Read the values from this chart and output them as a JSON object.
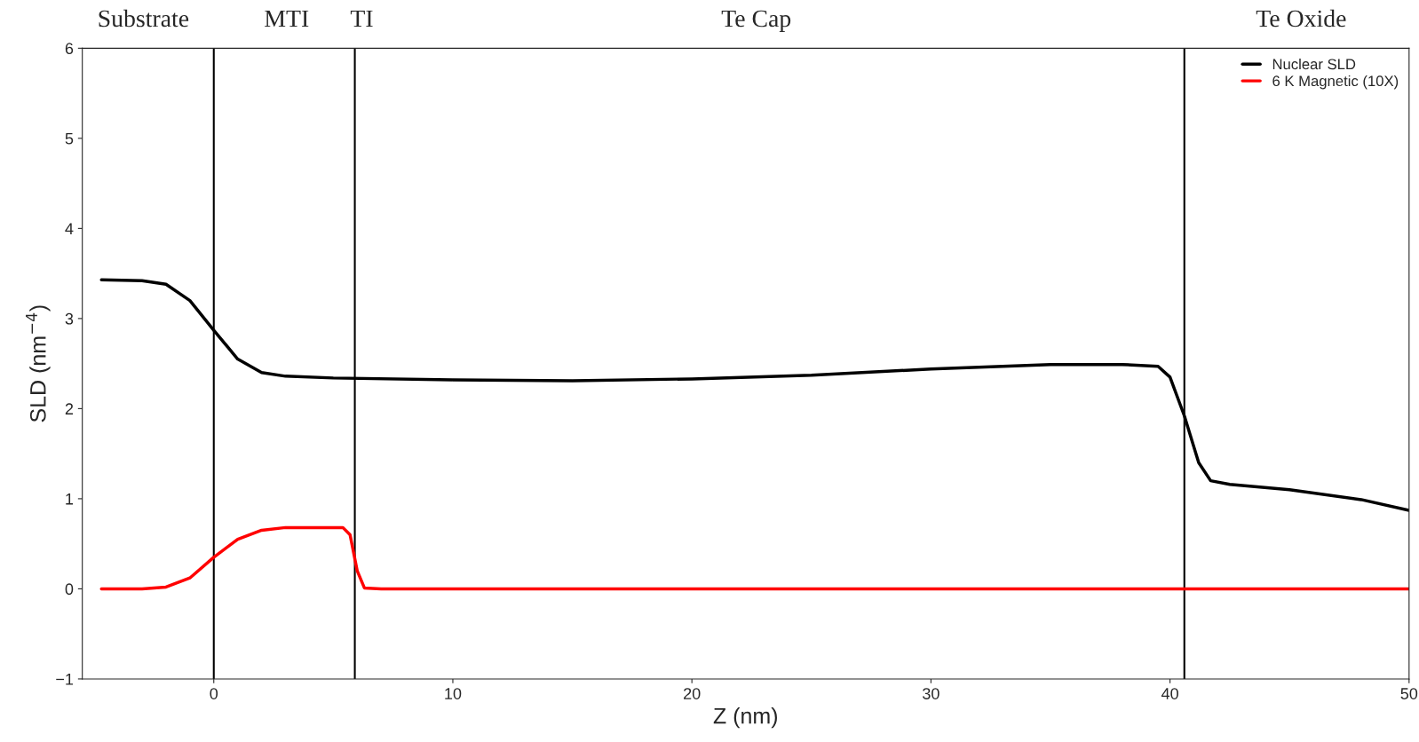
{
  "chart_data": {
    "type": "line",
    "xlabel": "Z (nm)",
    "ylabel": "SLD (nm$^{−4}$)",
    "xlim": [
      -5.5,
      50
    ],
    "ylim": [
      -1,
      6
    ],
    "xticks": [
      0,
      10,
      20,
      30,
      40,
      50
    ],
    "yticks": [
      -1,
      0,
      1,
      2,
      3,
      4,
      5,
      6
    ],
    "grid": false,
    "legend": "top right",
    "marker": "none",
    "line_style": "solid",
    "series": [
      {
        "name": "Nuclear SLD",
        "color": "#000000",
        "x": [
          -4.7,
          -3,
          -2,
          -1,
          0,
          1,
          2,
          3,
          5,
          10,
          15,
          20,
          25,
          30,
          35,
          38,
          39.5,
          40,
          40.6,
          41.2,
          41.7,
          42.5,
          45,
          48,
          50
        ],
        "values": [
          3.43,
          3.42,
          3.38,
          3.2,
          2.87,
          2.55,
          2.4,
          2.36,
          2.34,
          2.32,
          2.31,
          2.33,
          2.37,
          2.44,
          2.49,
          2.49,
          2.47,
          2.35,
          1.92,
          1.4,
          1.2,
          1.16,
          1.1,
          0.99,
          0.87
        ]
      },
      {
        "name": "6 K Magnetic (10X)",
        "color": "#ff0000",
        "x": [
          -4.7,
          -3,
          -2,
          -1,
          0,
          1,
          2,
          3,
          5.4,
          5.7,
          6,
          6.3,
          7,
          50
        ],
        "values": [
          0,
          0,
          0.02,
          0.12,
          0.35,
          0.55,
          0.65,
          0.68,
          0.68,
          0.6,
          0.2,
          0.01,
          0,
          0
        ]
      }
    ],
    "ref_lines": [
      {
        "axis": "x",
        "value": 0,
        "color": "#000000"
      },
      {
        "axis": "x",
        "value": 5.9,
        "color": "#000000"
      },
      {
        "axis": "x",
        "value": 40.6,
        "color": "#000000"
      }
    ],
    "annotations": [
      "Substrate",
      "MTI",
      "TI",
      "Te Cap",
      "Te Oxide"
    ]
  }
}
